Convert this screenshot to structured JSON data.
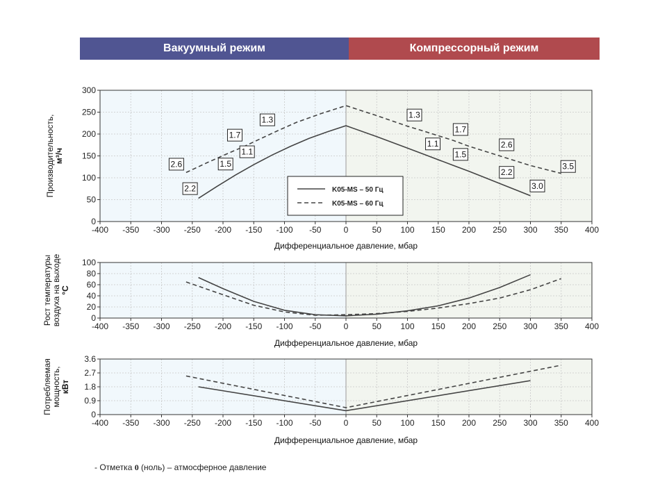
{
  "banners": {
    "vacuum": "Вакуумный режим",
    "compressor": "Компрессорный режим"
  },
  "footnote": {
    "prefix": "- Отметка ",
    "zero": "0",
    "suffix": " (ноль) – атмосферное давление"
  },
  "colors": {
    "vacuum_banner": "#505592",
    "compressor_banner": "#b04a4e",
    "vacuum_bg": "#f1f8fc",
    "compressor_bg": "#f2f5ef",
    "line": "#444444"
  },
  "chart_data": [
    {
      "type": "line",
      "id": "flow",
      "xlabel": "Дифференциальное давление, мбар",
      "ylabel_lines": [
        "Производительность,",
        "м³/ч"
      ],
      "xlim": [
        -400,
        400
      ],
      "ylim": [
        0,
        300
      ],
      "xticks": [
        -400,
        -350,
        -300,
        -250,
        -200,
        -150,
        -100,
        -50,
        0,
        50,
        100,
        150,
        200,
        250,
        300,
        350,
        400
      ],
      "yticks": [
        0,
        50,
        100,
        150,
        200,
        250,
        300
      ],
      "legend": {
        "placement": "center",
        "entries": [
          "K05-MS – 50 Гц",
          "K05-MS – 60 Гц"
        ]
      },
      "series": [
        {
          "name": "K05-MS – 50 Гц",
          "style": "solid",
          "x": [
            -240,
            -210,
            -180,
            -150,
            -120,
            -90,
            -60,
            -30,
            0,
            50,
            100,
            130,
            175,
            200,
            250,
            300
          ],
          "y": [
            53,
            80,
            106,
            130,
            152,
            172,
            190,
            205,
            219,
            194,
            168,
            152,
            128,
            115,
            87,
            59
          ]
        },
        {
          "name": "K05-MS – 60 Гц",
          "style": "dashed",
          "x": [
            -260,
            -225,
            -190,
            -165,
            -150,
            -112,
            -80,
            -40,
            0,
            50,
            100,
            130,
            175,
            200,
            250,
            300,
            350
          ],
          "y": [
            112,
            135,
            157,
            172,
            182,
            207,
            227,
            247,
            265,
            242,
            218,
            205,
            185,
            172,
            150,
            128,
            110
          ]
        }
      ],
      "point_labels": [
        {
          "text": "2.6",
          "series": 1,
          "x": -260,
          "y": 112
        },
        {
          "text": "1.7",
          "series": 1,
          "x": -165,
          "y": 172
        },
        {
          "text": "1.3",
          "series": 1,
          "x": -112,
          "y": 207
        },
        {
          "text": "1.3",
          "series": 1,
          "x": 100,
          "y": 218
        },
        {
          "text": "1.7",
          "series": 1,
          "x": 175,
          "y": 185
        },
        {
          "text": "2.6",
          "series": 1,
          "x": 250,
          "y": 150
        },
        {
          "text": "3.5",
          "series": 1,
          "x": 350,
          "y": 110
        },
        {
          "text": "2.2",
          "series": 0,
          "x": -240,
          "y": 53
        },
        {
          "text": "1.5",
          "series": 0,
          "x": -180,
          "y": 106
        },
        {
          "text": "1.1",
          "series": 0,
          "x": -145,
          "y": 134
        },
        {
          "text": "1.1",
          "series": 0,
          "x": 130,
          "y": 152
        },
        {
          "text": "1.5",
          "series": 0,
          "x": 175,
          "y": 128
        },
        {
          "text": "2.2",
          "series": 0,
          "x": 250,
          "y": 87
        },
        {
          "text": "3.0",
          "series": 0,
          "x": 300,
          "y": 59
        }
      ]
    },
    {
      "type": "line",
      "id": "temp",
      "xlabel": "Дифференциальное давление, мбар",
      "ylabel_lines": [
        "Рост температуры",
        "воздуха на выходе",
        "°С"
      ],
      "xlim": [
        -400,
        400
      ],
      "ylim": [
        0,
        100
      ],
      "xticks": [
        -400,
        -350,
        -300,
        -250,
        -200,
        -150,
        -100,
        -50,
        0,
        50,
        100,
        150,
        200,
        250,
        300,
        350,
        400
      ],
      "yticks": [
        0,
        20,
        40,
        60,
        80,
        100
      ],
      "series": [
        {
          "name": "K05-MS – 50 Гц",
          "style": "solid",
          "x": [
            -240,
            -200,
            -150,
            -100,
            -50,
            0,
            50,
            100,
            150,
            200,
            250,
            300
          ],
          "y": [
            73,
            53,
            30,
            14,
            6,
            4,
            7,
            13,
            22,
            36,
            55,
            78
          ]
        },
        {
          "name": "K05-MS – 60 Гц",
          "style": "dashed",
          "x": [
            -260,
            -200,
            -150,
            -100,
            -50,
            0,
            50,
            100,
            150,
            200,
            250,
            300,
            350
          ],
          "y": [
            65,
            42,
            23,
            11,
            5,
            6,
            8,
            12,
            18,
            26,
            36,
            51,
            71
          ]
        }
      ]
    },
    {
      "type": "line",
      "id": "power",
      "xlabel": "Дифференциальное давление, мбар",
      "ylabel_lines": [
        "Потребляемая",
        "мощность,",
        "кВт"
      ],
      "xlim": [
        -400,
        400
      ],
      "ylim": [
        0,
        3.6
      ],
      "xticks": [
        -400,
        -350,
        -300,
        -250,
        -200,
        -150,
        -100,
        -50,
        0,
        50,
        100,
        150,
        200,
        250,
        300,
        350,
        400
      ],
      "yticks": [
        0,
        0.9,
        1.8,
        2.7,
        3.6
      ],
      "series": [
        {
          "name": "K05-MS – 50 Гц",
          "style": "solid",
          "x": [
            -240,
            0,
            300
          ],
          "y": [
            1.8,
            0.25,
            2.2
          ]
        },
        {
          "name": "K05-MS – 60 Гц",
          "style": "dashed",
          "x": [
            -260,
            0,
            350
          ],
          "y": [
            2.5,
            0.45,
            3.2
          ]
        }
      ]
    }
  ]
}
